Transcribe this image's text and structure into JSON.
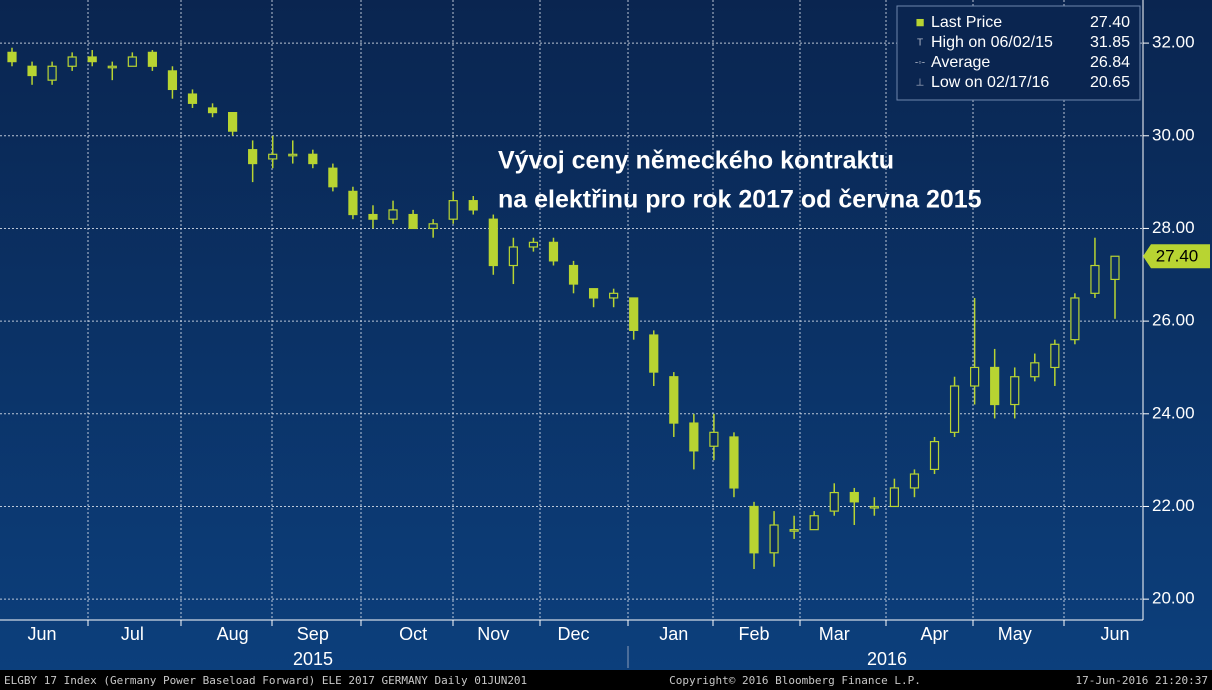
{
  "chart_data": {
    "type": "candlestick",
    "annotation": [
      "Vývoj ceny německého kontraktu",
      "na elektřinu pro rok 2017 od června 2015"
    ],
    "color": "#b8d432",
    "categories": [
      null,
      "Jun",
      null,
      null,
      null,
      null,
      "Jul",
      null,
      null,
      null,
      null,
      "Aug",
      null,
      null,
      null,
      "Sep",
      null,
      null,
      null,
      null,
      "Oct",
      null,
      null,
      null,
      "Nov",
      null,
      null,
      null,
      "Dec",
      null,
      null,
      null,
      null,
      "Jan",
      null,
      null,
      null,
      "Feb",
      null,
      null,
      null,
      "Mar",
      null,
      null,
      null,
      null,
      "Apr",
      null,
      null,
      null,
      "May",
      null,
      null,
      null,
      null,
      "Jun"
    ],
    "open": [
      31.8,
      31.5,
      31.2,
      31.5,
      31.7,
      31.5,
      31.5,
      31.8,
      31.4,
      30.9,
      30.6,
      30.5,
      29.7,
      29.5,
      29.6,
      29.6,
      29.3,
      28.8,
      28.3,
      28.2,
      28.3,
      28.0,
      28.2,
      28.6,
      28.2,
      27.2,
      27.6,
      27.7,
      27.2,
      26.7,
      26.5,
      26.5,
      25.7,
      24.8,
      23.8,
      23.3,
      23.5,
      22.0,
      21.0,
      21.5,
      21.5,
      21.9,
      22.3,
      22.0,
      22.0,
      22.4,
      22.8,
      23.6,
      24.6,
      25.0,
      24.2,
      24.8,
      25.0,
      25.6,
      26.6,
      26.9
    ],
    "high": [
      31.9,
      31.6,
      31.6,
      31.8,
      31.85,
      31.6,
      31.8,
      31.85,
      31.5,
      31.0,
      30.7,
      30.5,
      29.9,
      30.0,
      29.9,
      29.7,
      29.4,
      28.9,
      28.5,
      28.6,
      28.4,
      28.2,
      28.8,
      28.7,
      28.3,
      27.8,
      27.8,
      27.8,
      27.3,
      26.7,
      26.7,
      26.5,
      25.8,
      24.9,
      24.0,
      24.0,
      23.6,
      22.1,
      21.9,
      21.8,
      21.9,
      22.5,
      22.4,
      22.2,
      22.6,
      22.8,
      23.5,
      24.8,
      26.5,
      25.4,
      25.0,
      25.3,
      25.6,
      26.6,
      27.8,
      27.4
    ],
    "low": [
      31.5,
      31.1,
      31.1,
      31.4,
      31.5,
      31.2,
      31.5,
      31.4,
      30.8,
      30.6,
      30.4,
      30.0,
      29.0,
      29.3,
      29.4,
      29.3,
      28.8,
      28.2,
      28.0,
      28.1,
      28.0,
      27.8,
      28.1,
      28.3,
      27.0,
      26.8,
      27.5,
      27.2,
      26.6,
      26.3,
      26.3,
      25.6,
      24.6,
      23.5,
      22.8,
      23.0,
      22.2,
      20.65,
      20.7,
      21.3,
      21.5,
      21.8,
      21.6,
      21.8,
      22.0,
      22.2,
      22.7,
      23.5,
      24.2,
      23.9,
      23.9,
      24.7,
      24.6,
      25.5,
      26.5,
      26.05
    ],
    "close": [
      31.6,
      31.3,
      31.5,
      31.7,
      31.6,
      31.5,
      31.7,
      31.5,
      31.0,
      30.7,
      30.5,
      30.1,
      29.4,
      29.6,
      29.6,
      29.4,
      28.9,
      28.3,
      28.2,
      28.4,
      28.0,
      28.1,
      28.6,
      28.4,
      27.2,
      27.6,
      27.7,
      27.3,
      26.8,
      26.5,
      26.6,
      25.8,
      24.9,
      23.8,
      23.2,
      23.6,
      22.4,
      21.0,
      21.6,
      21.5,
      21.8,
      22.3,
      22.1,
      22.0,
      22.4,
      22.7,
      23.4,
      24.6,
      25.0,
      24.2,
      24.8,
      25.1,
      25.5,
      26.5,
      27.2,
      27.4
    ],
    "year_labels": [
      "2015",
      "2016"
    ],
    "ylim": [
      19.55,
      32.93
    ],
    "yticks": [
      {
        "value": 20,
        "label": "20.00"
      },
      {
        "value": 22,
        "label": "22.00"
      },
      {
        "value": 24,
        "label": "24.00"
      },
      {
        "value": 26,
        "label": "26.00"
      },
      {
        "value": 28,
        "label": "28.00"
      },
      {
        "value": 30,
        "label": "30.00"
      },
      {
        "value": 32,
        "label": "32.00"
      }
    ],
    "grid": true,
    "legend": {
      "position": "upper right",
      "items": [
        {
          "label": "Last Price",
          "value": "27.40"
        },
        {
          "label": "High on 06/02/15",
          "value": "31.85"
        },
        {
          "label": "Average",
          "value": "26.84"
        },
        {
          "label": "Low on 02/17/16",
          "value": "20.65"
        }
      ]
    },
    "footer": {
      "left": "ELGBY 17 Index (Germany Power Baseload Forward) ELE 2017 GERMANY  Daily 01JUN201",
      "center": "Copyright© 2016 Bloomberg Finance L.P.",
      "right": "17-Jun-2016 21:20:37"
    }
  }
}
